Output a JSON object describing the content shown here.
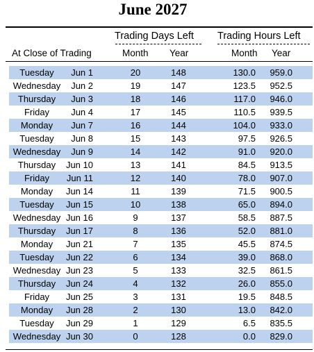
{
  "title": "June 2027",
  "headers": {
    "trading_days_left": "Trading Days Left",
    "trading_hours_left": "Trading Hours Left",
    "at_close": "At Close of Trading",
    "month": "Month",
    "year": "Year"
  },
  "colors": {
    "shade": "#bcd2ee"
  },
  "rows": [
    {
      "day": "Tuesday",
      "date": "Jun 1",
      "days_month": "20",
      "days_year": "148",
      "hours_month": "130.0",
      "hours_year": "959.0"
    },
    {
      "day": "Wednesday",
      "date": "Jun 2",
      "days_month": "19",
      "days_year": "147",
      "hours_month": "123.5",
      "hours_year": "952.5"
    },
    {
      "day": "Thursday",
      "date": "Jun 3",
      "days_month": "18",
      "days_year": "146",
      "hours_month": "117.0",
      "hours_year": "946.0"
    },
    {
      "day": "Friday",
      "date": "Jun 4",
      "days_month": "17",
      "days_year": "145",
      "hours_month": "110.5",
      "hours_year": "939.5"
    },
    {
      "day": "Monday",
      "date": "Jun 7",
      "days_month": "16",
      "days_year": "144",
      "hours_month": "104.0",
      "hours_year": "933.0"
    },
    {
      "day": "Tuesday",
      "date": "Jun 8",
      "days_month": "15",
      "days_year": "143",
      "hours_month": "97.5",
      "hours_year": "926.5"
    },
    {
      "day": "Wednesday",
      "date": "Jun 9",
      "days_month": "14",
      "days_year": "142",
      "hours_month": "91.0",
      "hours_year": "920.0"
    },
    {
      "day": "Thursday",
      "date": "Jun 10",
      "days_month": "13",
      "days_year": "141",
      "hours_month": "84.5",
      "hours_year": "913.5"
    },
    {
      "day": "Friday",
      "date": "Jun 11",
      "days_month": "12",
      "days_year": "140",
      "hours_month": "78.0",
      "hours_year": "907.0"
    },
    {
      "day": "Monday",
      "date": "Jun 14",
      "days_month": "11",
      "days_year": "139",
      "hours_month": "71.5",
      "hours_year": "900.5"
    },
    {
      "day": "Tuesday",
      "date": "Jun 15",
      "days_month": "10",
      "days_year": "138",
      "hours_month": "65.0",
      "hours_year": "894.0"
    },
    {
      "day": "Wednesday",
      "date": "Jun 16",
      "days_month": "9",
      "days_year": "137",
      "hours_month": "58.5",
      "hours_year": "887.5"
    },
    {
      "day": "Thursday",
      "date": "Jun 17",
      "days_month": "8",
      "days_year": "136",
      "hours_month": "52.0",
      "hours_year": "881.0"
    },
    {
      "day": "Monday",
      "date": "Jun 21",
      "days_month": "7",
      "days_year": "135",
      "hours_month": "45.5",
      "hours_year": "874.5"
    },
    {
      "day": "Tuesday",
      "date": "Jun 22",
      "days_month": "6",
      "days_year": "134",
      "hours_month": "39.0",
      "hours_year": "868.0"
    },
    {
      "day": "Wednesday",
      "date": "Jun 23",
      "days_month": "5",
      "days_year": "133",
      "hours_month": "32.5",
      "hours_year": "861.5"
    },
    {
      "day": "Thursday",
      "date": "Jun 24",
      "days_month": "4",
      "days_year": "132",
      "hours_month": "26.0",
      "hours_year": "855.0"
    },
    {
      "day": "Friday",
      "date": "Jun 25",
      "days_month": "3",
      "days_year": "131",
      "hours_month": "19.5",
      "hours_year": "848.5"
    },
    {
      "day": "Monday",
      "date": "Jun 28",
      "days_month": "2",
      "days_year": "130",
      "hours_month": "13.0",
      "hours_year": "842.0"
    },
    {
      "day": "Tuesday",
      "date": "Jun 29",
      "days_month": "1",
      "days_year": "129",
      "hours_month": "6.5",
      "hours_year": "835.5"
    },
    {
      "day": "Wednesday",
      "date": "Jun 30",
      "days_month": "0",
      "days_year": "128",
      "hours_month": "0.0",
      "hours_year": "829.0"
    }
  ]
}
